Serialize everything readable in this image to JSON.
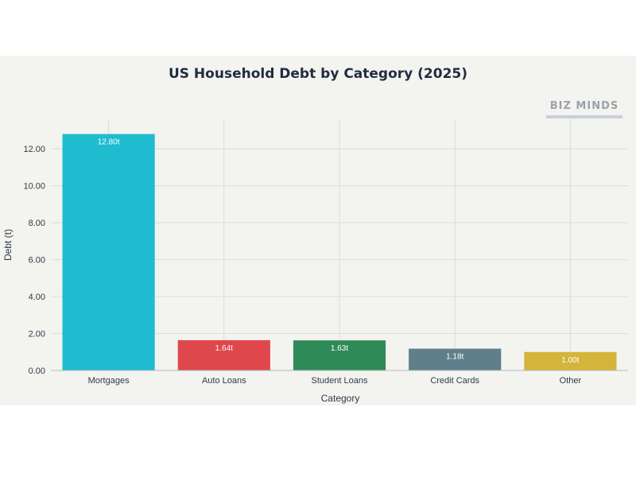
{
  "chart_data": {
    "type": "bar",
    "title": "US Household Debt by Category (2025)",
    "xlabel": "Category",
    "ylabel": "Debt (t)",
    "categories": [
      "Mortgages",
      "Auto Loans",
      "Student Loans",
      "Credit Cards",
      "Other"
    ],
    "values": [
      12.8,
      1.64,
      1.63,
      1.18,
      1.0
    ],
    "data_labels": [
      "12.80t",
      "1.64t",
      "1.63t",
      "1.18t",
      "1.00t"
    ],
    "colors": [
      "#1fbccf",
      "#e0474c",
      "#2e8b57",
      "#5f7f8a",
      "#d4b43a"
    ],
    "ylim": [
      0,
      13.6
    ],
    "yticks": [
      0,
      2,
      4,
      6,
      8,
      10,
      12
    ],
    "ytick_labels": [
      "0.00",
      "2.00",
      "4.00",
      "6.00",
      "8.00",
      "10.00",
      "12.00"
    ],
    "grid": true,
    "legend": "none"
  },
  "watermark": {
    "text": "BIZ MINDS",
    "color": "#9aa3ad"
  }
}
